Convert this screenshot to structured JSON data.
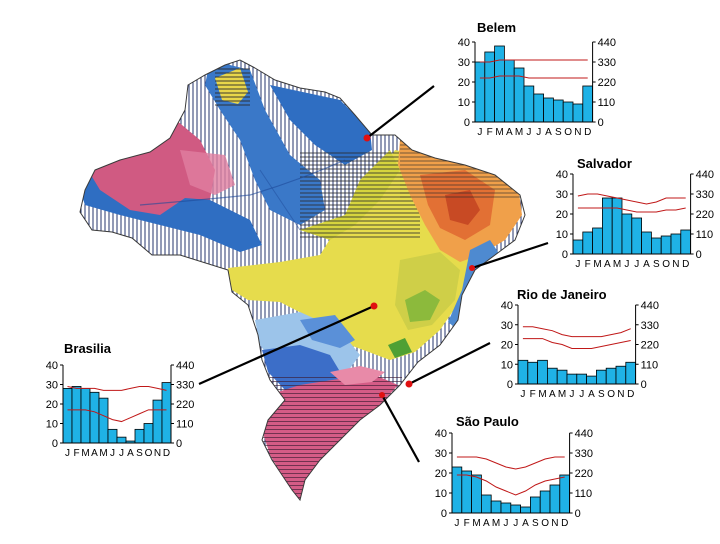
{
  "map": {
    "colors": {
      "equatorial_humid": "#2b6cc4",
      "equatorial_very_humid": "#d4587a",
      "tropical_semi_humid": "#e8d64a",
      "semi_arid": "#e06a2a",
      "subtropical": "#d45c86",
      "highland": "#4aa0d8",
      "hatching": "#1a2a60",
      "station_marker": "#e01010"
    }
  },
  "chart_data": [
    {
      "type": "bar",
      "station": "Belem",
      "title": "Belem",
      "categories": [
        "J",
        "F",
        "M",
        "A",
        "M",
        "J",
        "J",
        "A",
        "S",
        "O",
        "N",
        "D"
      ],
      "values": [
        30,
        35,
        38,
        31,
        27,
        18,
        14,
        12,
        11,
        10,
        9,
        18
      ],
      "ylim": [
        0,
        40
      ],
      "yticks": [
        0,
        10,
        20,
        30,
        40
      ],
      "y2lim": [
        0,
        440
      ],
      "y2ticks": [
        0,
        110,
        220,
        330,
        440
      ],
      "temperature_lines": [
        [
          30,
          30,
          31,
          31,
          31,
          31,
          31,
          31,
          31,
          31,
          31,
          31
        ],
        [
          22,
          22,
          23,
          23,
          23,
          22,
          22,
          22,
          22,
          22,
          22,
          22
        ]
      ],
      "bar_color": "#1fb2e6",
      "line_color": "#c01818"
    },
    {
      "type": "bar",
      "station": "Salvador",
      "title": "Salvador",
      "categories": [
        "J",
        "F",
        "M",
        "A",
        "M",
        "J",
        "J",
        "A",
        "S",
        "O",
        "N",
        "D"
      ],
      "values": [
        7,
        11,
        13,
        28,
        28,
        20,
        18,
        11,
        8,
        9,
        10,
        12
      ],
      "ylim": [
        0,
        40
      ],
      "yticks": [
        0,
        10,
        20,
        30,
        40
      ],
      "y2lim": [
        0,
        440
      ],
      "y2ticks": [
        0,
        110,
        220,
        330,
        440
      ],
      "temperature_lines": [
        [
          29,
          30,
          30,
          29,
          28,
          27,
          26,
          25,
          26,
          28,
          28,
          28
        ],
        [
          23,
          23,
          23,
          23,
          23,
          22,
          21,
          21,
          21,
          22,
          22,
          23
        ]
      ],
      "bar_color": "#1fb2e6",
      "line_color": "#c01818"
    },
    {
      "type": "bar",
      "station": "Rio de Janeiro",
      "title": "Rio de Janeiro",
      "categories": [
        "J",
        "F",
        "M",
        "A",
        "M",
        "J",
        "J",
        "A",
        "S",
        "O",
        "N",
        "D"
      ],
      "values": [
        12,
        11,
        12,
        8,
        7,
        5,
        5,
        4,
        7,
        8,
        9,
        11
      ],
      "ylim": [
        0,
        40
      ],
      "yticks": [
        0,
        10,
        20,
        30,
        40
      ],
      "y2lim": [
        0,
        440
      ],
      "y2ticks": [
        0,
        110,
        220,
        330,
        440
      ],
      "temperature_lines": [
        [
          29,
          29,
          28,
          27,
          25,
          24,
          24,
          24,
          24,
          25,
          26,
          28
        ],
        [
          23,
          23,
          23,
          21,
          20,
          18,
          18,
          18,
          19,
          20,
          21,
          22
        ]
      ],
      "bar_color": "#1fb2e6",
      "line_color": "#c01818"
    },
    {
      "type": "bar",
      "station": "Brasilia",
      "title": "Brasilia",
      "categories": [
        "J",
        "F",
        "M",
        "A",
        "M",
        "J",
        "J",
        "A",
        "S",
        "O",
        "N",
        "D"
      ],
      "values": [
        28,
        29,
        28,
        26,
        23,
        7,
        3,
        1,
        7,
        10,
        22,
        31
      ],
      "ylim": [
        0,
        40
      ],
      "yticks": [
        0,
        10,
        20,
        30,
        40
      ],
      "y2lim": [
        0,
        440
      ],
      "y2ticks": [
        0,
        110,
        220,
        330,
        440
      ],
      "temperature_lines": [
        [
          29,
          28,
          28,
          28,
          27,
          27,
          27,
          28,
          29,
          29,
          28,
          27
        ],
        [
          17,
          17,
          17,
          16,
          14,
          12,
          11,
          13,
          15,
          17,
          17,
          17
        ]
      ],
      "bar_color": "#1fb2e6",
      "line_color": "#c01818"
    },
    {
      "type": "bar",
      "station": "São Paulo",
      "title": "São Paulo",
      "categories": [
        "J",
        "F",
        "M",
        "A",
        "M",
        "J",
        "J",
        "A",
        "S",
        "O",
        "N",
        "D"
      ],
      "values": [
        23,
        21,
        19,
        9,
        6,
        5,
        4,
        3,
        8,
        11,
        14,
        19
      ],
      "ylim": [
        0,
        40
      ],
      "yticks": [
        0,
        10,
        20,
        30,
        40
      ],
      "y2lim": [
        0,
        440
      ],
      "y2ticks": [
        0,
        110,
        220,
        330,
        440
      ],
      "temperature_lines": [
        [
          28,
          28,
          28,
          27,
          25,
          23,
          22,
          23,
          25,
          27,
          28,
          28
        ],
        [
          19,
          19,
          18,
          16,
          13,
          11,
          9,
          11,
          14,
          16,
          17,
          18
        ]
      ],
      "bar_color": "#1fb2e6",
      "line_color": "#c01818"
    }
  ]
}
